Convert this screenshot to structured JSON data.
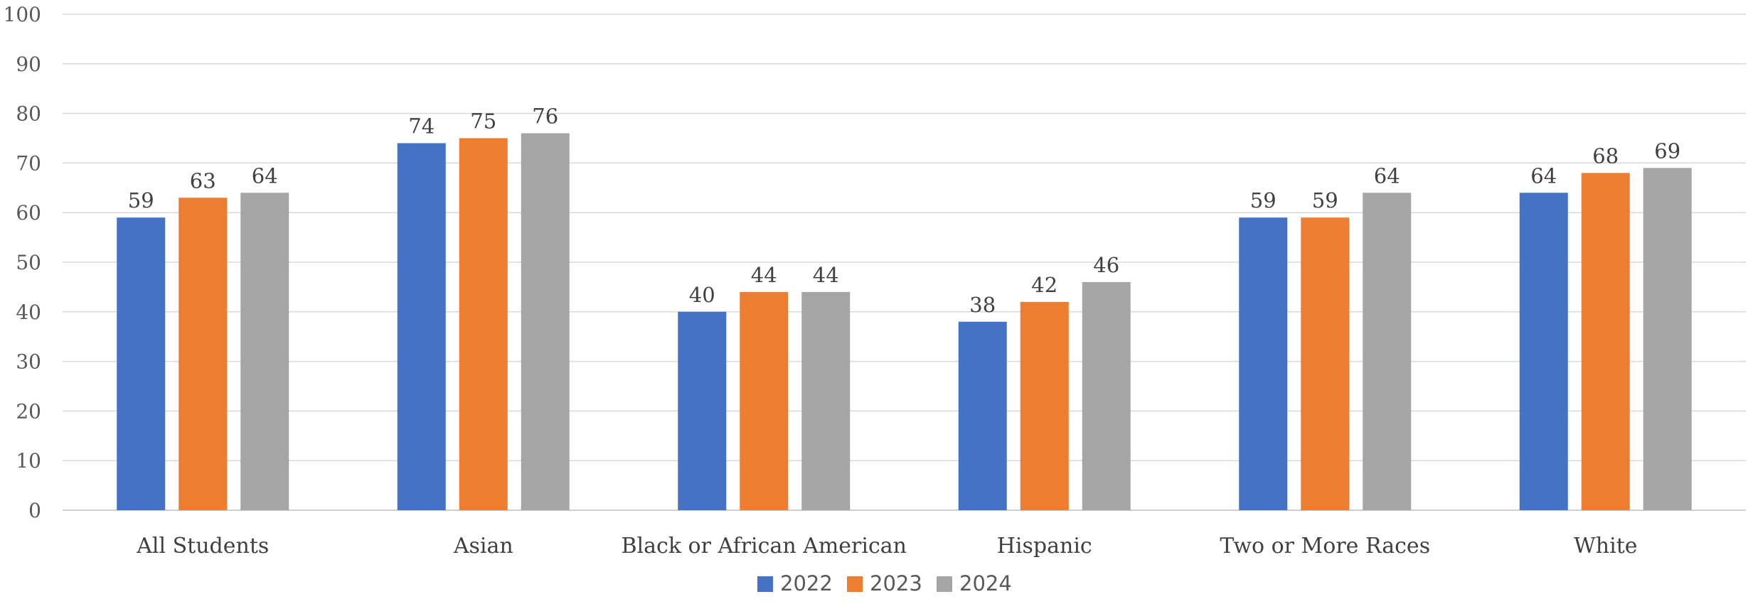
{
  "chart_data": {
    "type": "bar",
    "title": "",
    "xlabel": "",
    "ylabel": "",
    "ylim": [
      0,
      100
    ],
    "yticks": [
      0,
      10,
      20,
      30,
      40,
      50,
      60,
      70,
      80,
      90,
      100
    ],
    "categories": [
      "All Students",
      "Asian",
      "Black or African American",
      "Hispanic",
      "Two or More Races",
      "White"
    ],
    "series": [
      {
        "name": "2022",
        "color": "#4472C4",
        "values": [
          59,
          74,
          40,
          38,
          59,
          64
        ]
      },
      {
        "name": "2023",
        "color": "#ED7D31",
        "values": [
          63,
          75,
          44,
          42,
          59,
          68
        ]
      },
      {
        "name": "2024",
        "color": "#A5A5A5",
        "values": [
          64,
          76,
          44,
          46,
          64,
          69
        ]
      }
    ],
    "grid": true,
    "legend_position": "bottom",
    "data_labels": true
  }
}
